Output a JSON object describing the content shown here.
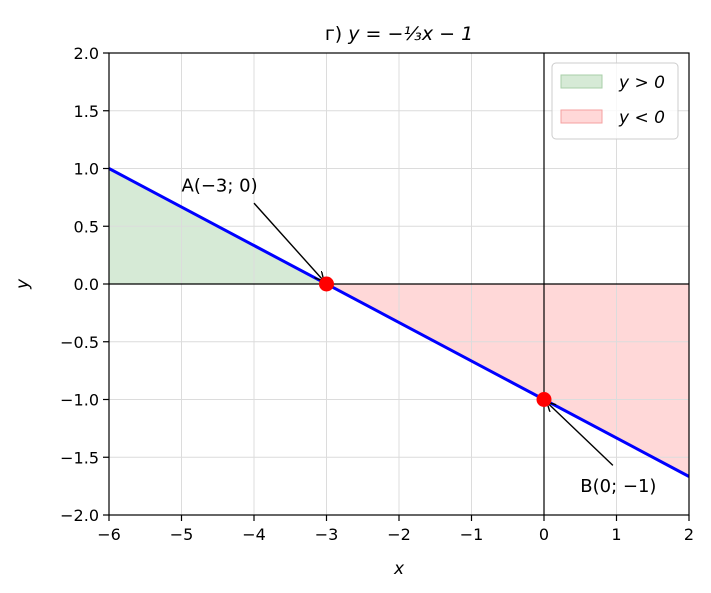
{
  "chart_data": {
    "type": "line",
    "title": "г) y = −⅓x − 1",
    "title_prefix": "г)",
    "title_formula": "y = −⅓x − 1",
    "xlabel": "x",
    "ylabel": "y",
    "xlim": [
      -6,
      2
    ],
    "ylim": [
      -2,
      2
    ],
    "x_ticks": [
      -6,
      -5,
      -4,
      -3,
      -2,
      -1,
      0,
      1,
      2
    ],
    "y_ticks": [
      -2.0,
      -1.5,
      -1.0,
      -0.5,
      0.0,
      0.5,
      1.0,
      1.5,
      2.0
    ],
    "x_tick_labels": [
      "−6",
      "−5",
      "−4",
      "−3",
      "−2",
      "−1",
      "0",
      "1",
      "2"
    ],
    "y_tick_labels": [
      "−2.0",
      "−1.5",
      "−1.0",
      "−0.5",
      "0.0",
      "0.5",
      "1.0",
      "1.5",
      "2.0"
    ],
    "grid": true,
    "legend_position": "top-right",
    "line": {
      "slope": -0.3333333,
      "intercept": -1,
      "color": "#0000ff"
    },
    "regions": [
      {
        "label": "y > 0",
        "x_range": [
          -6,
          -3
        ],
        "color": "#d6ead6",
        "edge": "#a8cfa8"
      },
      {
        "label": "y < 0",
        "x_range": [
          -3,
          2
        ],
        "color": "#ffd8d8",
        "edge": "#f4a0a0"
      }
    ],
    "points": [
      {
        "x": -3,
        "y": 0,
        "label": "A(−3; 0)",
        "label_x": -5,
        "label_y": 0.8
      },
      {
        "x": 0,
        "y": -1,
        "label": "B(0; −1)",
        "label_x": 0.5,
        "label_y": -1.8
      }
    ],
    "point_color": "#ff0000"
  }
}
